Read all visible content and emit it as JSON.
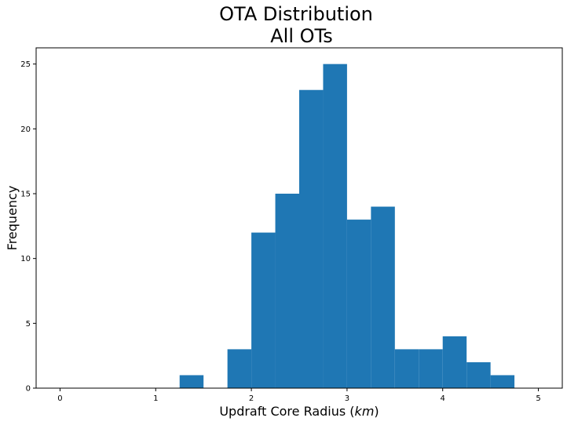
{
  "chart_data": {
    "type": "bar",
    "title": [
      "OTA Distribution",
      "All OTs"
    ],
    "xlabel": "Updraft Core Radius (",
    "xlabel_math": "km",
    "xlabel_end": ")",
    "ylabel": "Frequency",
    "xlim": [
      -0.25,
      5.25
    ],
    "ylim": [
      0,
      26.25
    ],
    "xticks": [
      0,
      1,
      2,
      3,
      4,
      5
    ],
    "yticks": [
      0,
      5,
      10,
      15,
      20,
      25
    ],
    "bar_color": "#1f77b4",
    "bins": [
      {
        "start": 1.25,
        "end": 1.5,
        "count": 1
      },
      {
        "start": 1.75,
        "end": 2.0,
        "count": 3
      },
      {
        "start": 2.0,
        "end": 2.25,
        "count": 12
      },
      {
        "start": 2.25,
        "end": 2.5,
        "count": 15
      },
      {
        "start": 2.5,
        "end": 2.75,
        "count": 23
      },
      {
        "start": 2.75,
        "end": 3.0,
        "count": 25
      },
      {
        "start": 3.0,
        "end": 3.25,
        "count": 13
      },
      {
        "start": 3.25,
        "end": 3.5,
        "count": 14
      },
      {
        "start": 3.5,
        "end": 3.75,
        "count": 3
      },
      {
        "start": 3.75,
        "end": 4.0,
        "count": 3
      },
      {
        "start": 4.0,
        "end": 4.25,
        "count": 4
      },
      {
        "start": 4.25,
        "end": 4.5,
        "count": 2
      },
      {
        "start": 4.5,
        "end": 4.75,
        "count": 1
      }
    ]
  }
}
